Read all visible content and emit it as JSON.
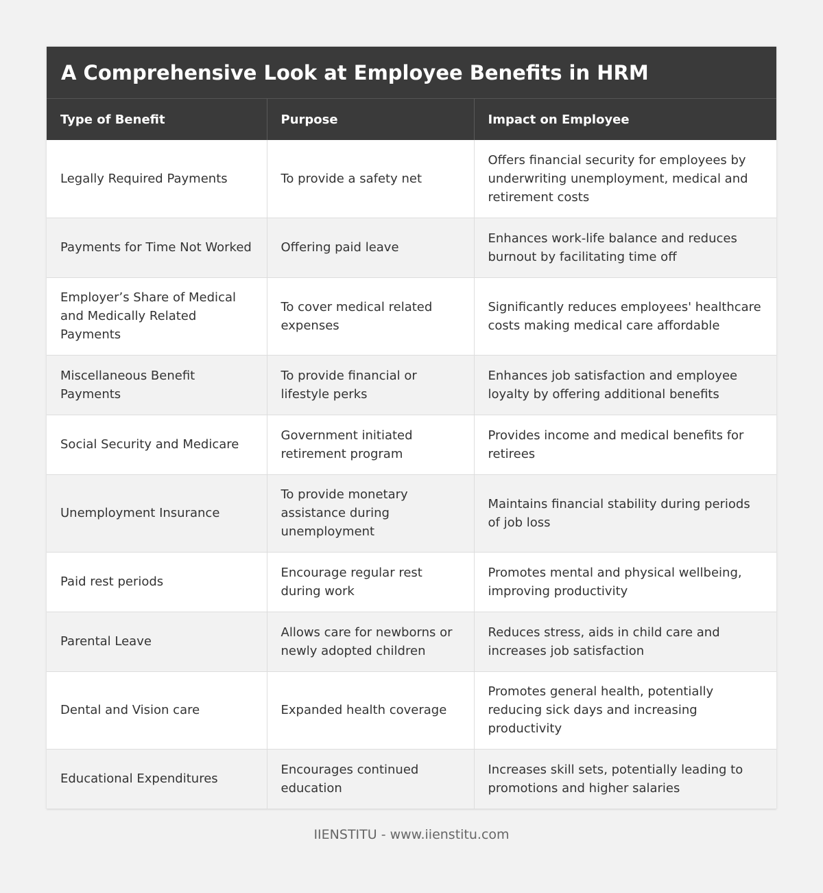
{
  "title": "A Comprehensive Look at Employee Benefits in HRM",
  "headers": [
    "Type of Benefit",
    "Purpose",
    "Impact on Employee"
  ],
  "rows": [
    [
      "Legally Required Payments",
      "To provide a safety net",
      "Offers financial security for employees by underwriting unemployment, medical and retirement costs"
    ],
    [
      "Payments for Time Not Worked",
      "Offering paid leave",
      "Enhances work-life balance and reduces burnout by facilitating time off"
    ],
    [
      "Employer’s Share of Medical and Medically Related Payments",
      "To cover medical related expenses",
      "Significantly reduces employees' healthcare costs making medical care affordable"
    ],
    [
      "Miscellaneous Benefit Payments",
      "To provide financial or lifestyle perks",
      "Enhances job satisfaction and employee loyalty by offering additional benefits"
    ],
    [
      "Social Security and Medicare",
      "Government initiated retirement program",
      "Provides income and medical benefits for retirees"
    ],
    [
      "Unemployment Insurance",
      "To provide monetary assistance during unemployment",
      "Maintains financial stability during periods of job loss"
    ],
    [
      "Paid rest periods",
      "Encourage regular rest during work",
      "Promotes mental and physical wellbeing, improving productivity"
    ],
    [
      "Parental Leave",
      "Allows care for newborns or newly adopted children",
      "Reduces stress, aids in child care and increases job satisfaction"
    ],
    [
      "Dental and Vision care",
      "Expanded health coverage",
      "Promotes general health, potentially reducing sick days and increasing productivity"
    ],
    [
      "Educational Expenditures",
      "Encourages continued education",
      "Increases skill sets, potentially leading to promotions and higher salaries"
    ]
  ],
  "footer": "IIENSTITU - www.iienstitu.com"
}
